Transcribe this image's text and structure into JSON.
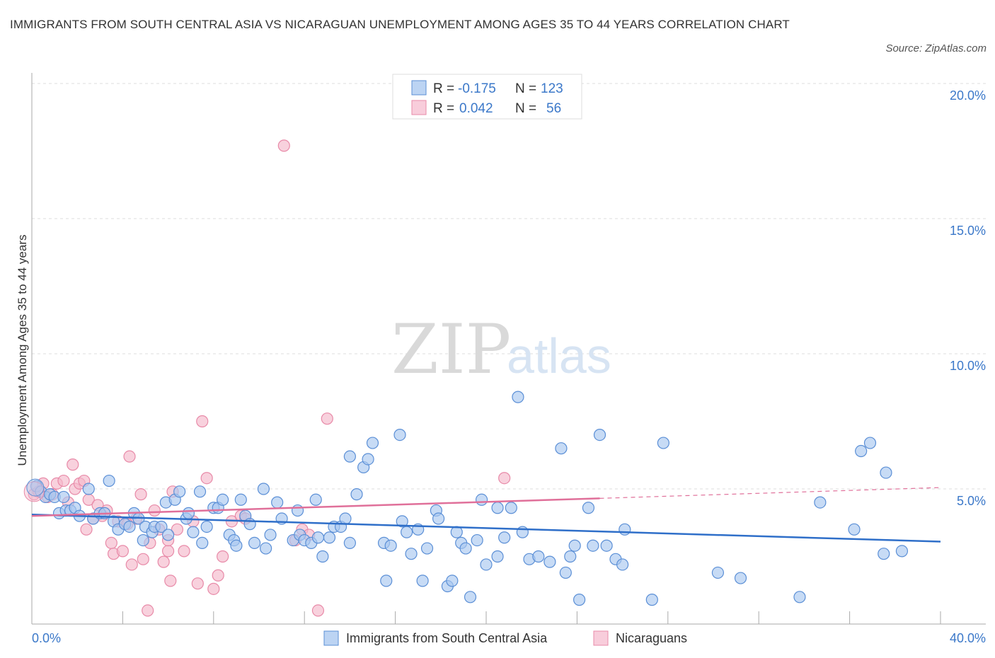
{
  "title": "IMMIGRANTS FROM SOUTH CENTRAL ASIA VS NICARAGUAN UNEMPLOYMENT AMONG AGES 35 TO 44 YEARS CORRELATION CHART",
  "source": "Source: ZipAtlas.com",
  "watermark": {
    "zip": "ZIP",
    "atlas": "atlas"
  },
  "colors": {
    "blue_fill": "#a9c8ef",
    "blue_stroke": "#5b8fd6",
    "blue_line": "#2f6fc9",
    "pink_fill": "#f5b8cb",
    "pink_stroke": "#e88aa8",
    "pink_line": "#e0709a",
    "grid": "#dddddd",
    "axis_text": "#3b78c9"
  },
  "legend": {
    "rows": [
      {
        "r_label": "R =",
        "r_value": "-0.175",
        "n_label": "N =",
        "n_value": "123"
      },
      {
        "r_label": "R =",
        "r_value": "0.042",
        "n_label": "N =",
        "n_value": "56"
      }
    ]
  },
  "chart_data": {
    "type": "scatter",
    "title": "IMMIGRANTS FROM SOUTH CENTRAL ASIA VS NICARAGUAN UNEMPLOYMENT AMONG AGES 35 TO 44 YEARS CORRELATION CHART",
    "xlabel": "",
    "ylabel": "Unemployment Among Ages 35 to 44 years",
    "xlim": [
      0,
      40
    ],
    "ylim": [
      0,
      20
    ],
    "x_tick_labels": [
      "0.0%",
      "40.0%"
    ],
    "y_ticks": [
      5,
      10,
      15,
      20
    ],
    "y_tick_labels": [
      "5.0%",
      "10.0%",
      "15.0%",
      "20.0%"
    ],
    "grid": true,
    "legend_position": "top-center",
    "series": [
      {
        "name": "Immigrants from South Central Asia",
        "color": "#5b8fd6",
        "trend": {
          "x": [
            0,
            40
          ],
          "y": [
            4.05,
            3.05
          ],
          "style": "solid"
        },
        "points": [
          [
            0.2,
            5.1
          ],
          [
            0.4,
            4.9
          ],
          [
            0.6,
            4.7
          ],
          [
            0.8,
            4.8
          ],
          [
            1.0,
            4.7
          ],
          [
            1.2,
            4.1
          ],
          [
            1.4,
            4.7
          ],
          [
            1.5,
            4.2
          ],
          [
            1.7,
            4.2
          ],
          [
            1.9,
            4.3
          ],
          [
            2.1,
            4.0
          ],
          [
            2.5,
            5.0
          ],
          [
            2.7,
            3.9
          ],
          [
            3.0,
            4.1
          ],
          [
            3.2,
            4.1
          ],
          [
            3.4,
            5.3
          ],
          [
            3.6,
            3.8
          ],
          [
            3.8,
            3.5
          ],
          [
            4.1,
            3.7
          ],
          [
            4.3,
            3.6
          ],
          [
            4.5,
            4.1
          ],
          [
            4.7,
            3.9
          ],
          [
            4.9,
            3.1
          ],
          [
            5.0,
            3.6
          ],
          [
            5.3,
            3.4
          ],
          [
            5.4,
            3.6
          ],
          [
            5.7,
            3.6
          ],
          [
            5.9,
            4.5
          ],
          [
            6.0,
            3.3
          ],
          [
            6.3,
            4.6
          ],
          [
            6.5,
            4.9
          ],
          [
            6.8,
            3.9
          ],
          [
            6.9,
            4.1
          ],
          [
            7.1,
            3.4
          ],
          [
            7.4,
            4.9
          ],
          [
            7.5,
            3.0
          ],
          [
            7.7,
            3.6
          ],
          [
            8.0,
            4.3
          ],
          [
            8.2,
            4.3
          ],
          [
            8.4,
            4.6
          ],
          [
            8.7,
            3.3
          ],
          [
            8.9,
            3.1
          ],
          [
            9.0,
            2.9
          ],
          [
            9.2,
            4.6
          ],
          [
            9.4,
            4.0
          ],
          [
            9.6,
            3.7
          ],
          [
            9.8,
            3.0
          ],
          [
            10.2,
            5.0
          ],
          [
            10.3,
            2.8
          ],
          [
            10.5,
            3.3
          ],
          [
            10.8,
            4.5
          ],
          [
            11.0,
            3.9
          ],
          [
            11.5,
            3.1
          ],
          [
            11.7,
            4.2
          ],
          [
            11.8,
            3.3
          ],
          [
            12.0,
            3.1
          ],
          [
            12.3,
            3.0
          ],
          [
            12.5,
            4.6
          ],
          [
            12.6,
            3.2
          ],
          [
            12.8,
            2.5
          ],
          [
            13.1,
            3.2
          ],
          [
            13.3,
            3.6
          ],
          [
            13.6,
            3.6
          ],
          [
            13.8,
            3.9
          ],
          [
            14.0,
            3.0
          ],
          [
            14.3,
            4.8
          ],
          [
            14.0,
            6.2
          ],
          [
            14.6,
            5.8
          ],
          [
            14.8,
            6.1
          ],
          [
            15.0,
            6.7
          ],
          [
            15.5,
            3.0
          ],
          [
            15.6,
            1.6
          ],
          [
            15.8,
            2.9
          ],
          [
            16.2,
            7.0
          ],
          [
            16.3,
            3.8
          ],
          [
            16.5,
            3.4
          ],
          [
            16.7,
            2.6
          ],
          [
            17.0,
            3.5
          ],
          [
            17.2,
            1.6
          ],
          [
            17.4,
            2.8
          ],
          [
            17.8,
            4.2
          ],
          [
            17.9,
            3.9
          ],
          [
            18.3,
            1.4
          ],
          [
            18.5,
            1.6
          ],
          [
            18.7,
            3.4
          ],
          [
            18.9,
            3.0
          ],
          [
            19.1,
            2.8
          ],
          [
            19.3,
            1.0
          ],
          [
            19.6,
            3.1
          ],
          [
            19.8,
            4.6
          ],
          [
            20.0,
            2.2
          ],
          [
            20.5,
            4.3
          ],
          [
            20.5,
            2.5
          ],
          [
            20.8,
            3.2
          ],
          [
            21.1,
            4.3
          ],
          [
            21.4,
            8.4
          ],
          [
            21.6,
            3.4
          ],
          [
            21.9,
            2.4
          ],
          [
            22.3,
            2.5
          ],
          [
            22.8,
            2.3
          ],
          [
            23.3,
            6.5
          ],
          [
            23.5,
            1.9
          ],
          [
            23.7,
            2.5
          ],
          [
            23.9,
            2.9
          ],
          [
            24.1,
            0.9
          ],
          [
            24.5,
            4.3
          ],
          [
            24.7,
            2.9
          ],
          [
            25.0,
            7.0
          ],
          [
            25.3,
            2.9
          ],
          [
            25.7,
            2.4
          ],
          [
            26.0,
            2.2
          ],
          [
            26.1,
            3.5
          ],
          [
            27.3,
            0.9
          ],
          [
            27.8,
            6.7
          ],
          [
            30.2,
            1.9
          ],
          [
            31.2,
            1.7
          ],
          [
            33.8,
            1.0
          ],
          [
            34.7,
            4.5
          ],
          [
            36.2,
            3.5
          ],
          [
            36.5,
            6.4
          ],
          [
            36.9,
            6.7
          ],
          [
            37.5,
            2.6
          ],
          [
            38.3,
            2.7
          ],
          [
            37.6,
            5.6
          ]
        ]
      },
      {
        "name": "Nicaraguans",
        "color": "#e88aa8",
        "trend": {
          "x": [
            0,
            25
          ],
          "y": [
            4.0,
            4.65
          ],
          "style": "solid",
          "dashed_to": [
            40,
            5.05
          ]
        },
        "points": [
          [
            0.1,
            4.8
          ],
          [
            0.3,
            4.9
          ],
          [
            0.5,
            5.2
          ],
          [
            0.7,
            4.7
          ],
          [
            0.9,
            4.8
          ],
          [
            1.1,
            5.2
          ],
          [
            1.4,
            5.3
          ],
          [
            1.6,
            4.5
          ],
          [
            1.8,
            5.9
          ],
          [
            1.9,
            5.0
          ],
          [
            2.1,
            5.2
          ],
          [
            2.3,
            5.3
          ],
          [
            2.4,
            3.5
          ],
          [
            2.5,
            4.6
          ],
          [
            2.7,
            3.9
          ],
          [
            2.9,
            4.4
          ],
          [
            3.1,
            4.0
          ],
          [
            3.3,
            4.2
          ],
          [
            3.5,
            3.0
          ],
          [
            3.6,
            2.6
          ],
          [
            3.8,
            3.8
          ],
          [
            4.0,
            2.7
          ],
          [
            4.2,
            3.7
          ],
          [
            4.3,
            6.2
          ],
          [
            4.4,
            2.2
          ],
          [
            4.6,
            3.9
          ],
          [
            4.8,
            4.8
          ],
          [
            4.9,
            2.4
          ],
          [
            5.1,
            0.5
          ],
          [
            5.2,
            3.0
          ],
          [
            5.4,
            4.2
          ],
          [
            5.6,
            3.5
          ],
          [
            5.8,
            2.3
          ],
          [
            6.0,
            2.7
          ],
          [
            6.1,
            1.6
          ],
          [
            6.2,
            4.9
          ],
          [
            6.4,
            3.5
          ],
          [
            6.7,
            2.7
          ],
          [
            7.1,
            3.8
          ],
          [
            7.3,
            1.5
          ],
          [
            7.5,
            7.5
          ],
          [
            7.7,
            5.4
          ],
          [
            8.0,
            1.3
          ],
          [
            8.2,
            1.8
          ],
          [
            8.4,
            2.5
          ],
          [
            8.8,
            3.8
          ],
          [
            9.2,
            4.0
          ],
          [
            9.4,
            3.9
          ],
          [
            11.1,
            17.7
          ],
          [
            11.6,
            3.1
          ],
          [
            11.9,
            3.5
          ],
          [
            12.2,
            3.3
          ],
          [
            12.6,
            0.5
          ],
          [
            13.0,
            7.6
          ],
          [
            20.8,
            5.4
          ],
          [
            6.0,
            3.1
          ]
        ]
      }
    ]
  },
  "bottom_legend": [
    {
      "label": "Immigrants from South Central Asia",
      "color": "blue"
    },
    {
      "label": "Nicaraguans",
      "color": "pink"
    }
  ]
}
